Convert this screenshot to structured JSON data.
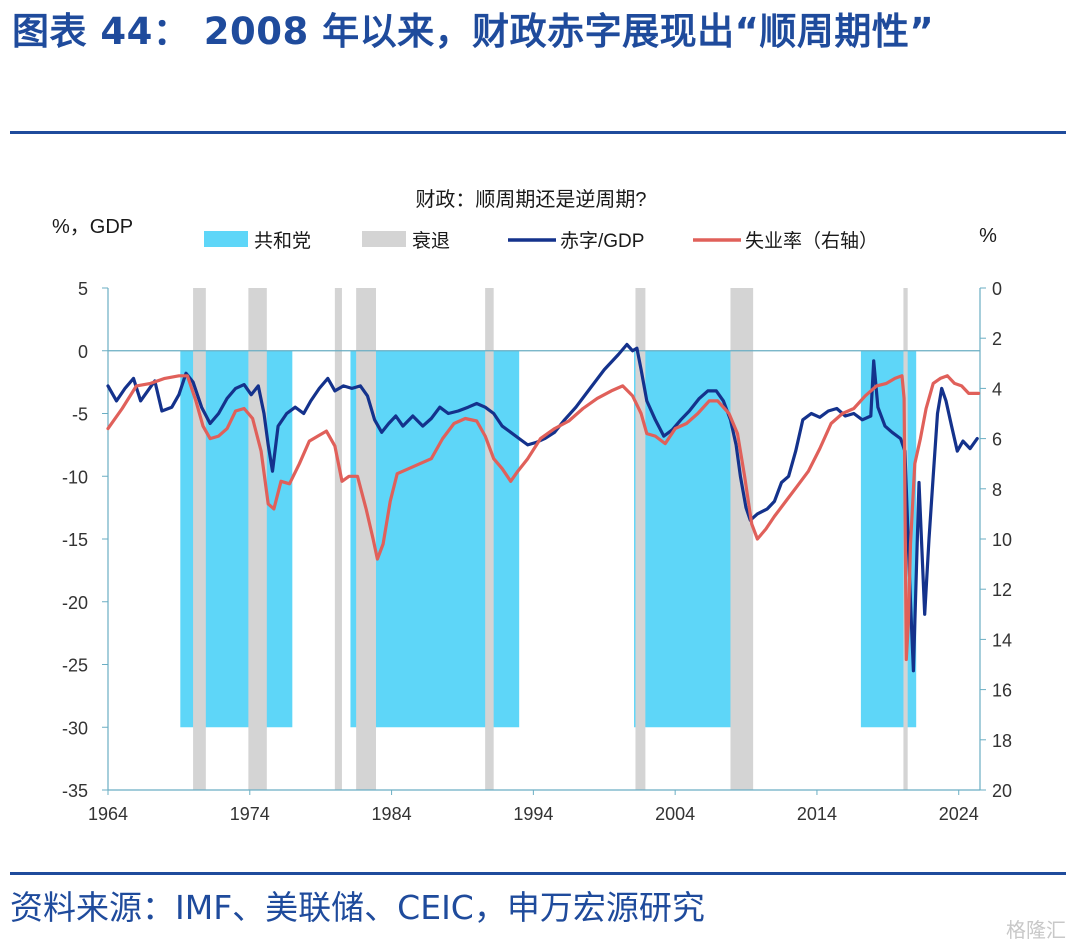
{
  "figure": {
    "title": "图表 44：  2008 年以来，财政赤字展现出“顺周期性”",
    "source": "资料来源：IMF、美联储、CEIC，申万宏源研究",
    "watermark": "格隆汇"
  },
  "colors": {
    "rule": "#1f4b9c",
    "republican": "#5ed6f8",
    "recession": "#d4d4d4",
    "deficit": "#14328c",
    "unemployment": "#e0605a",
    "axis": "#6aaec3"
  },
  "chart_data": {
    "type": "line",
    "title": "财政：顺周期还是逆周期?",
    "ylabel": "%，GDP",
    "y2label": "%",
    "xlim": [
      1964,
      2025.5
    ],
    "ylim": [
      -35,
      5
    ],
    "y2lim": [
      20,
      0
    ],
    "y2_inverted": true,
    "xticks": [
      1964,
      1974,
      1984,
      1994,
      2004,
      2014,
      2024
    ],
    "yticks": [
      5,
      0,
      -5,
      -10,
      -15,
      -20,
      -25,
      -30,
      -35
    ],
    "y2ticks": [
      0,
      2,
      4,
      6,
      8,
      10,
      12,
      14,
      16,
      18,
      20
    ],
    "legend": [
      {
        "name": "共和党",
        "kind": "band",
        "color": "#5ed6f8"
      },
      {
        "name": "衰退",
        "kind": "band",
        "color": "#d4d4d4"
      },
      {
        "name": "赤字/GDP",
        "kind": "line",
        "color": "#14328c"
      },
      {
        "name": "失业率（右轴）",
        "kind": "line",
        "color": "#e0605a"
      }
    ],
    "republican_bands": [
      [
        1969.1,
        1977.0
      ],
      [
        1981.1,
        1993.0
      ],
      [
        2001.1,
        2009.0
      ],
      [
        2017.1,
        2021.0
      ]
    ],
    "republican_band_y": [
      0,
      -30
    ],
    "recession_bands": [
      [
        1970.0,
        1970.9
      ],
      [
        1973.9,
        1975.2
      ],
      [
        1980.0,
        1980.5
      ],
      [
        1981.5,
        1982.9
      ],
      [
        1990.6,
        1991.2
      ],
      [
        2001.2,
        2001.9
      ],
      [
        2007.9,
        2009.5
      ],
      [
        2020.1,
        2020.4
      ]
    ],
    "series": [
      {
        "name": "赤字/GDP",
        "axis": "left",
        "points": [
          [
            1964.0,
            -2.8
          ],
          [
            1964.6,
            -4.0
          ],
          [
            1965.2,
            -3.0
          ],
          [
            1965.8,
            -2.2
          ],
          [
            1966.3,
            -4.0
          ],
          [
            1966.8,
            -3.2
          ],
          [
            1967.3,
            -2.4
          ],
          [
            1967.8,
            -4.8
          ],
          [
            1968.5,
            -4.5
          ],
          [
            1969.0,
            -3.5
          ],
          [
            1969.5,
            -1.8
          ],
          [
            1970.0,
            -2.5
          ],
          [
            1970.6,
            -4.5
          ],
          [
            1971.2,
            -5.8
          ],
          [
            1971.8,
            -5.0
          ],
          [
            1972.4,
            -3.8
          ],
          [
            1973.0,
            -3.0
          ],
          [
            1973.6,
            -2.7
          ],
          [
            1974.1,
            -3.5
          ],
          [
            1974.6,
            -2.8
          ],
          [
            1975.0,
            -5.0
          ],
          [
            1975.3,
            -7.5
          ],
          [
            1975.6,
            -9.6
          ],
          [
            1976.0,
            -6.0
          ],
          [
            1976.6,
            -5.0
          ],
          [
            1977.2,
            -4.5
          ],
          [
            1977.8,
            -5.0
          ],
          [
            1978.3,
            -4.0
          ],
          [
            1978.9,
            -3.0
          ],
          [
            1979.5,
            -2.2
          ],
          [
            1980.0,
            -3.2
          ],
          [
            1980.6,
            -2.8
          ],
          [
            1981.2,
            -3.0
          ],
          [
            1981.8,
            -2.8
          ],
          [
            1982.3,
            -3.6
          ],
          [
            1982.8,
            -5.5
          ],
          [
            1983.3,
            -6.5
          ],
          [
            1983.8,
            -5.8
          ],
          [
            1984.3,
            -5.2
          ],
          [
            1984.8,
            -6.0
          ],
          [
            1985.5,
            -5.2
          ],
          [
            1986.2,
            -6.0
          ],
          [
            1986.8,
            -5.4
          ],
          [
            1987.4,
            -4.5
          ],
          [
            1988.0,
            -5.0
          ],
          [
            1988.7,
            -4.8
          ],
          [
            1989.4,
            -4.5
          ],
          [
            1990.0,
            -4.2
          ],
          [
            1990.6,
            -4.5
          ],
          [
            1991.2,
            -5.0
          ],
          [
            1991.8,
            -6.0
          ],
          [
            1992.4,
            -6.5
          ],
          [
            1993.0,
            -7.0
          ],
          [
            1993.6,
            -7.5
          ],
          [
            1994.2,
            -7.3
          ],
          [
            1994.8,
            -7.0
          ],
          [
            1995.5,
            -6.5
          ],
          [
            1996.2,
            -5.5
          ],
          [
            1997.0,
            -4.5
          ],
          [
            1998.0,
            -3.0
          ],
          [
            1999.0,
            -1.5
          ],
          [
            2000.0,
            -0.3
          ],
          [
            2000.6,
            0.5
          ],
          [
            2001.0,
            0.0
          ],
          [
            2001.3,
            0.2
          ],
          [
            2001.6,
            -1.5
          ],
          [
            2002.0,
            -4.0
          ],
          [
            2002.6,
            -5.5
          ],
          [
            2003.2,
            -6.8
          ],
          [
            2003.8,
            -6.3
          ],
          [
            2004.4,
            -5.5
          ],
          [
            2005.0,
            -4.8
          ],
          [
            2005.7,
            -3.8
          ],
          [
            2006.3,
            -3.2
          ],
          [
            2006.9,
            -3.2
          ],
          [
            2007.4,
            -4.0
          ],
          [
            2007.9,
            -5.5
          ],
          [
            2008.3,
            -7.5
          ],
          [
            2008.6,
            -10.0
          ],
          [
            2009.0,
            -12.5
          ],
          [
            2009.3,
            -13.5
          ],
          [
            2009.8,
            -13.0
          ],
          [
            2010.5,
            -12.6
          ],
          [
            2011.0,
            -12.0
          ],
          [
            2011.5,
            -10.5
          ],
          [
            2012.0,
            -10.0
          ],
          [
            2012.5,
            -8.0
          ],
          [
            2013.0,
            -5.5
          ],
          [
            2013.6,
            -5.0
          ],
          [
            2014.2,
            -5.3
          ],
          [
            2014.8,
            -4.8
          ],
          [
            2015.4,
            -4.6
          ],
          [
            2016.0,
            -5.2
          ],
          [
            2016.6,
            -5.0
          ],
          [
            2017.2,
            -5.5
          ],
          [
            2017.8,
            -5.2
          ],
          [
            2018.0,
            -0.8
          ],
          [
            2018.3,
            -4.5
          ],
          [
            2018.8,
            -6.0
          ],
          [
            2019.3,
            -6.5
          ],
          [
            2019.9,
            -7.0
          ],
          [
            2020.2,
            -8.0
          ],
          [
            2020.4,
            -14.0
          ],
          [
            2020.6,
            -20.0
          ],
          [
            2020.8,
            -25.5
          ],
          [
            2021.0,
            -18.0
          ],
          [
            2021.2,
            -10.5
          ],
          [
            2021.6,
            -21.0
          ],
          [
            2021.9,
            -15.0
          ],
          [
            2022.2,
            -10.0
          ],
          [
            2022.5,
            -5.0
          ],
          [
            2022.8,
            -3.0
          ],
          [
            2023.1,
            -4.0
          ],
          [
            2023.5,
            -6.0
          ],
          [
            2023.9,
            -8.0
          ],
          [
            2024.3,
            -7.2
          ],
          [
            2024.8,
            -7.8
          ],
          [
            2025.3,
            -7.0
          ]
        ]
      },
      {
        "name": "失业率（右轴）",
        "axis": "right",
        "points": [
          [
            1964.0,
            5.6
          ],
          [
            1965.0,
            4.8
          ],
          [
            1966.0,
            3.9
          ],
          [
            1967.0,
            3.8
          ],
          [
            1968.0,
            3.6
          ],
          [
            1969.0,
            3.5
          ],
          [
            1969.6,
            3.5
          ],
          [
            1970.2,
            4.5
          ],
          [
            1970.7,
            5.5
          ],
          [
            1971.2,
            6.0
          ],
          [
            1971.8,
            5.9
          ],
          [
            1972.4,
            5.6
          ],
          [
            1973.0,
            4.9
          ],
          [
            1973.6,
            4.8
          ],
          [
            1974.2,
            5.2
          ],
          [
            1974.8,
            6.5
          ],
          [
            1975.3,
            8.6
          ],
          [
            1975.7,
            8.8
          ],
          [
            1976.2,
            7.7
          ],
          [
            1976.8,
            7.8
          ],
          [
            1977.5,
            7.0
          ],
          [
            1978.2,
            6.1
          ],
          [
            1978.8,
            5.9
          ],
          [
            1979.4,
            5.7
          ],
          [
            1980.0,
            6.3
          ],
          [
            1980.5,
            7.7
          ],
          [
            1981.0,
            7.5
          ],
          [
            1981.6,
            7.5
          ],
          [
            1982.2,
            8.8
          ],
          [
            1982.7,
            10.0
          ],
          [
            1983.0,
            10.8
          ],
          [
            1983.4,
            10.2
          ],
          [
            1983.9,
            8.5
          ],
          [
            1984.4,
            7.4
          ],
          [
            1985.2,
            7.2
          ],
          [
            1986.0,
            7.0
          ],
          [
            1986.8,
            6.8
          ],
          [
            1987.6,
            6.0
          ],
          [
            1988.4,
            5.4
          ],
          [
            1989.2,
            5.2
          ],
          [
            1990.0,
            5.3
          ],
          [
            1990.6,
            5.9
          ],
          [
            1991.2,
            6.8
          ],
          [
            1991.8,
            7.2
          ],
          [
            1992.4,
            7.7
          ],
          [
            1992.9,
            7.3
          ],
          [
            1993.6,
            6.8
          ],
          [
            1994.5,
            6.0
          ],
          [
            1995.5,
            5.6
          ],
          [
            1996.5,
            5.3
          ],
          [
            1997.5,
            4.8
          ],
          [
            1998.5,
            4.4
          ],
          [
            1999.5,
            4.1
          ],
          [
            2000.3,
            3.9
          ],
          [
            2001.0,
            4.3
          ],
          [
            2001.6,
            5.0
          ],
          [
            2002.0,
            5.8
          ],
          [
            2002.6,
            5.9
          ],
          [
            2003.3,
            6.2
          ],
          [
            2004.0,
            5.6
          ],
          [
            2004.8,
            5.4
          ],
          [
            2005.6,
            5.0
          ],
          [
            2006.4,
            4.5
          ],
          [
            2007.0,
            4.5
          ],
          [
            2007.8,
            5.0
          ],
          [
            2008.4,
            5.8
          ],
          [
            2008.9,
            7.5
          ],
          [
            2009.4,
            9.4
          ],
          [
            2009.8,
            10.0
          ],
          [
            2010.4,
            9.6
          ],
          [
            2011.0,
            9.1
          ],
          [
            2011.8,
            8.5
          ],
          [
            2012.6,
            7.9
          ],
          [
            2013.4,
            7.3
          ],
          [
            2014.2,
            6.4
          ],
          [
            2015.0,
            5.4
          ],
          [
            2015.8,
            5.0
          ],
          [
            2016.6,
            4.8
          ],
          [
            2017.4,
            4.3
          ],
          [
            2018.2,
            3.9
          ],
          [
            2018.9,
            3.8
          ],
          [
            2019.5,
            3.6
          ],
          [
            2020.0,
            3.5
          ],
          [
            2020.15,
            4.4
          ],
          [
            2020.3,
            14.8
          ],
          [
            2020.45,
            13.3
          ],
          [
            2020.6,
            10.2
          ],
          [
            2020.9,
            7.0
          ],
          [
            2021.3,
            6.0
          ],
          [
            2021.7,
            4.8
          ],
          [
            2022.2,
            3.8
          ],
          [
            2022.7,
            3.6
          ],
          [
            2023.2,
            3.5
          ],
          [
            2023.7,
            3.8
          ],
          [
            2024.2,
            3.9
          ],
          [
            2024.7,
            4.2
          ],
          [
            2025.4,
            4.2
          ]
        ]
      }
    ]
  }
}
